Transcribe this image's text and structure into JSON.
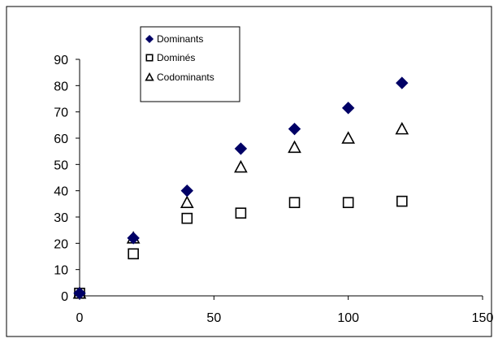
{
  "chart_data": {
    "type": "scatter",
    "title": "",
    "xlabel": "",
    "ylabel": "",
    "xlim": [
      0,
      150
    ],
    "ylim": [
      0,
      90
    ],
    "x_ticks": [
      0,
      50,
      100,
      150
    ],
    "y_ticks": [
      0,
      10,
      20,
      30,
      40,
      50,
      60,
      70,
      80,
      90
    ],
    "grid": false,
    "legend_position": "top-left",
    "series": [
      {
        "name": "Dominants",
        "marker": "diamond",
        "color": "#000066",
        "points": [
          {
            "x": 0,
            "y": 1
          },
          {
            "x": 20,
            "y": 22
          },
          {
            "x": 40,
            "y": 40
          },
          {
            "x": 60,
            "y": 56
          },
          {
            "x": 80,
            "y": 63.5
          },
          {
            "x": 100,
            "y": 71.5
          },
          {
            "x": 120,
            "y": 81
          }
        ]
      },
      {
        "name": "Dominés",
        "marker": "square",
        "color": "#000000",
        "points": [
          {
            "x": 0,
            "y": 1
          },
          {
            "x": 20,
            "y": 16
          },
          {
            "x": 40,
            "y": 29.5
          },
          {
            "x": 60,
            "y": 31.5
          },
          {
            "x": 80,
            "y": 35.5
          },
          {
            "x": 100,
            "y": 35.5
          },
          {
            "x": 120,
            "y": 36
          }
        ]
      },
      {
        "name": "Codominants",
        "marker": "triangle",
        "color": "#000000",
        "points": [
          {
            "x": 0,
            "y": 1
          },
          {
            "x": 20,
            "y": 22
          },
          {
            "x": 40,
            "y": 35.5
          },
          {
            "x": 60,
            "y": 49
          },
          {
            "x": 80,
            "y": 56.5
          },
          {
            "x": 100,
            "y": 60
          },
          {
            "x": 120,
            "y": 63.5
          }
        ]
      }
    ]
  }
}
